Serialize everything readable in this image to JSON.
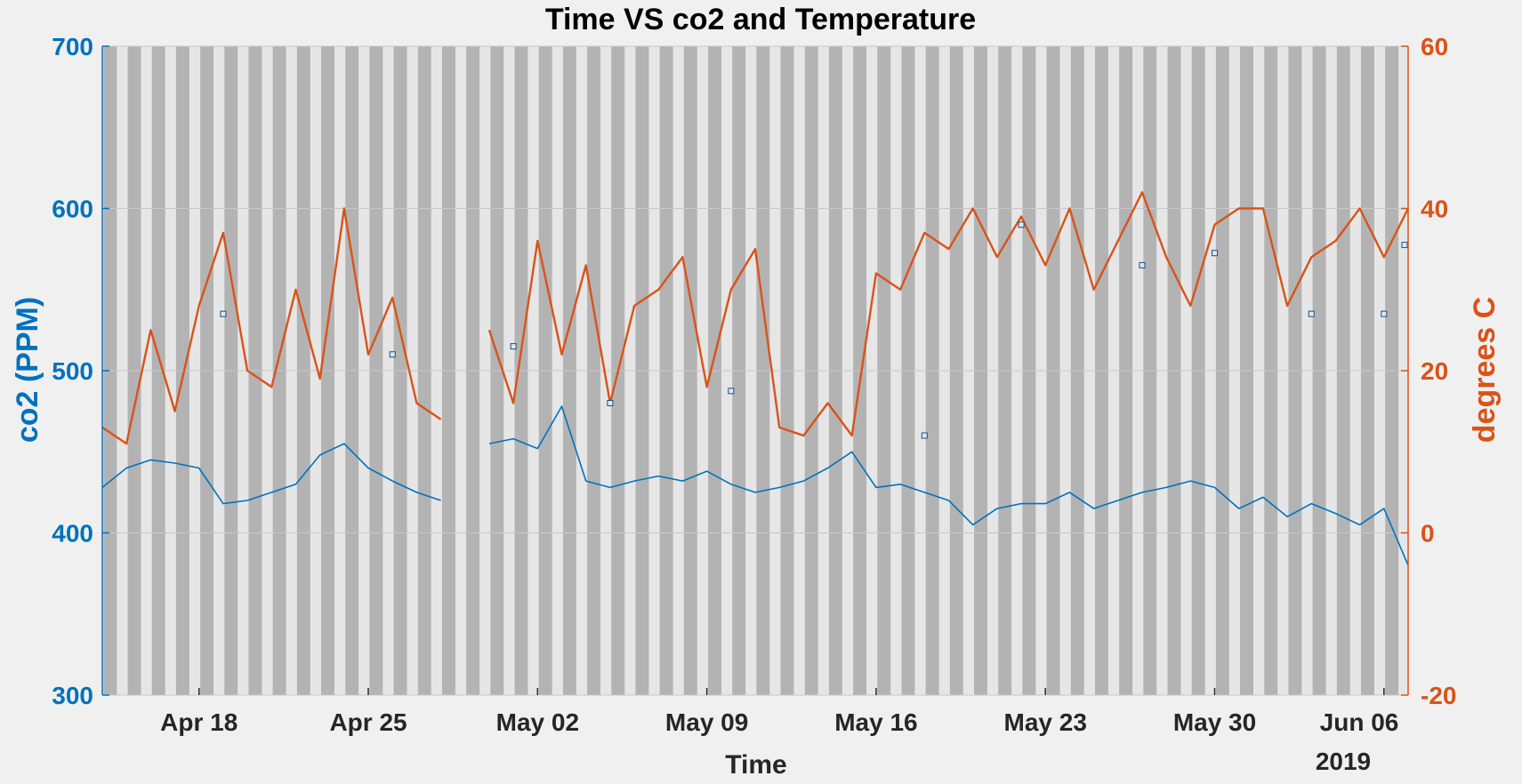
{
  "chart_data": {
    "type": "line",
    "title": "Time VS co2 and Temperature",
    "xlabel": "Time",
    "x_secondary_label": "2019",
    "x_ticks": [
      "Apr 18",
      "Apr 25",
      "May 02",
      "May 09",
      "May 16",
      "May 23",
      "May 30",
      "Jun 06"
    ],
    "x_tick_dates": [
      "2019-04-18",
      "2019-04-25",
      "2019-05-02",
      "2019-05-09",
      "2019-05-16",
      "2019-05-23",
      "2019-05-30",
      "2019-06-06"
    ],
    "xlim": [
      "2019-04-14",
      "2019-06-07"
    ],
    "y_left": {
      "label": "co2 (PPM)",
      "lim": [
        300,
        700
      ],
      "ticks": [
        "300",
        "400",
        "500",
        "600",
        "700"
      ]
    },
    "y_right": {
      "label": "degrees C",
      "lim": [
        -20,
        60
      ],
      "ticks": [
        "-20",
        "0",
        "20",
        "40",
        "60"
      ]
    },
    "grid": true,
    "colors": {
      "co2": "#0072BD",
      "temperature": "#D95319",
      "background": "#f0f0f0",
      "plot_background": "#e6e6e6",
      "night_band": "#b3b3b3"
    },
    "night_bands": "daily shaded bands (one per day across the full range)",
    "series": [
      {
        "axis": "left",
        "points": [
          [
            "2019-04-14",
            428
          ],
          [
            "2019-04-15",
            440
          ],
          [
            "2019-04-16",
            445
          ],
          [
            "2019-04-17",
            443
          ],
          [
            "2019-04-18",
            440
          ],
          [
            "2019-04-19",
            418
          ],
          [
            "2019-04-20",
            420
          ],
          [
            "2019-04-21",
            425
          ],
          [
            "2019-04-22",
            430
          ],
          [
            "2019-04-23",
            448
          ],
          [
            "2019-04-24",
            455
          ],
          [
            "2019-04-25",
            440
          ],
          [
            "2019-04-26",
            432
          ],
          [
            "2019-04-27",
            425
          ],
          [
            "2019-04-28",
            420
          ],
          [
            "2019-04-29",
            null
          ],
          [
            "2019-04-30",
            455
          ],
          [
            "2019-05-01",
            458
          ],
          [
            "2019-05-02",
            452
          ],
          [
            "2019-05-03",
            478
          ],
          [
            "2019-05-04",
            432
          ],
          [
            "2019-05-05",
            428
          ],
          [
            "2019-05-06",
            432
          ],
          [
            "2019-05-07",
            435
          ],
          [
            "2019-05-08",
            432
          ],
          [
            "2019-05-09",
            438
          ],
          [
            "2019-05-10",
            430
          ],
          [
            "2019-05-11",
            425
          ],
          [
            "2019-05-12",
            428
          ],
          [
            "2019-05-13",
            432
          ],
          [
            "2019-05-14",
            440
          ],
          [
            "2019-05-15",
            450
          ],
          [
            "2019-05-16",
            428
          ],
          [
            "2019-05-17",
            430
          ],
          [
            "2019-05-18",
            425
          ],
          [
            "2019-05-19",
            420
          ],
          [
            "2019-05-20",
            405
          ],
          [
            "2019-05-21",
            415
          ],
          [
            "2019-05-22",
            418
          ],
          [
            "2019-05-23",
            418
          ],
          [
            "2019-05-24",
            425
          ],
          [
            "2019-05-25",
            415
          ],
          [
            "2019-05-26",
            420
          ],
          [
            "2019-05-27",
            425
          ],
          [
            "2019-05-28",
            428
          ],
          [
            "2019-05-29",
            432
          ],
          [
            "2019-05-30",
            428
          ],
          [
            "2019-05-31",
            415
          ],
          [
            "2019-06-01",
            422
          ],
          [
            "2019-06-02",
            410
          ],
          [
            "2019-06-03",
            418
          ],
          [
            "2019-06-04",
            412
          ],
          [
            "2019-06-05",
            405
          ],
          [
            "2019-06-06",
            415
          ],
          [
            "2019-06-07",
            380
          ]
        ]
      },
      {
        "axis": "right",
        "points": [
          [
            "2019-04-14",
            13
          ],
          [
            "2019-04-15",
            11
          ],
          [
            "2019-04-16",
            25
          ],
          [
            "2019-04-17",
            15
          ],
          [
            "2019-04-18",
            28
          ],
          [
            "2019-04-19",
            37
          ],
          [
            "2019-04-20",
            20
          ],
          [
            "2019-04-21",
            18
          ],
          [
            "2019-04-22",
            30
          ],
          [
            "2019-04-23",
            19
          ],
          [
            "2019-04-24",
            40
          ],
          [
            "2019-04-25",
            22
          ],
          [
            "2019-04-26",
            29
          ],
          [
            "2019-04-27",
            16
          ],
          [
            "2019-04-28",
            14
          ],
          [
            "2019-04-29",
            null
          ],
          [
            "2019-04-30",
            25
          ],
          [
            "2019-05-01",
            16
          ],
          [
            "2019-05-02",
            36
          ],
          [
            "2019-05-03",
            22
          ],
          [
            "2019-05-04",
            33
          ],
          [
            "2019-05-05",
            16
          ],
          [
            "2019-05-06",
            28
          ],
          [
            "2019-05-07",
            30
          ],
          [
            "2019-05-08",
            34
          ],
          [
            "2019-05-09",
            18
          ],
          [
            "2019-05-10",
            30
          ],
          [
            "2019-05-11",
            35
          ],
          [
            "2019-05-12",
            13
          ],
          [
            "2019-05-13",
            12
          ],
          [
            "2019-05-14",
            16
          ],
          [
            "2019-05-15",
            12
          ],
          [
            "2019-05-16",
            32
          ],
          [
            "2019-05-17",
            30
          ],
          [
            "2019-05-18",
            37
          ],
          [
            "2019-05-19",
            35
          ],
          [
            "2019-05-20",
            40
          ],
          [
            "2019-05-21",
            34
          ],
          [
            "2019-05-22",
            39
          ],
          [
            "2019-05-23",
            33
          ],
          [
            "2019-05-24",
            40
          ],
          [
            "2019-05-25",
            30
          ],
          [
            "2019-05-26",
            36
          ],
          [
            "2019-05-27",
            42
          ],
          [
            "2019-05-28",
            34
          ],
          [
            "2019-05-29",
            28
          ],
          [
            "2019-05-30",
            38
          ],
          [
            "2019-05-31",
            40
          ],
          [
            "2019-06-01",
            40
          ],
          [
            "2019-06-02",
            28
          ],
          [
            "2019-06-03",
            34
          ],
          [
            "2019-06-04",
            36
          ],
          [
            "2019-06-05",
            40
          ],
          [
            "2019-06-06",
            34
          ],
          [
            "2019-06-07",
            40
          ]
        ]
      }
    ],
    "datatip_markers": [
      {
        "axis": "right",
        "date": "2019-04-19",
        "value": 27
      },
      {
        "axis": "right",
        "date": "2019-04-26",
        "value": 22
      },
      {
        "axis": "right",
        "date": "2019-05-01",
        "value": 23
      },
      {
        "axis": "right",
        "date": "2019-05-05",
        "value": 16
      },
      {
        "axis": "right",
        "date": "2019-05-10",
        "value": 17.5
      },
      {
        "axis": "right",
        "date": "2019-05-18",
        "value": 12
      },
      {
        "axis": "right",
        "date": "2019-05-22",
        "value": 38
      },
      {
        "axis": "right",
        "date": "2019-05-27",
        "value": 33
      },
      {
        "axis": "right",
        "date": "2019-05-30",
        "value": 34.5
      },
      {
        "axis": "right",
        "date": "2019-06-03",
        "value": 27
      },
      {
        "axis": "right",
        "date": "2019-06-06",
        "value": 27
      },
      {
        "axis": "right",
        "date": "2019-06-08",
        "value": 35.5
      }
    ]
  }
}
